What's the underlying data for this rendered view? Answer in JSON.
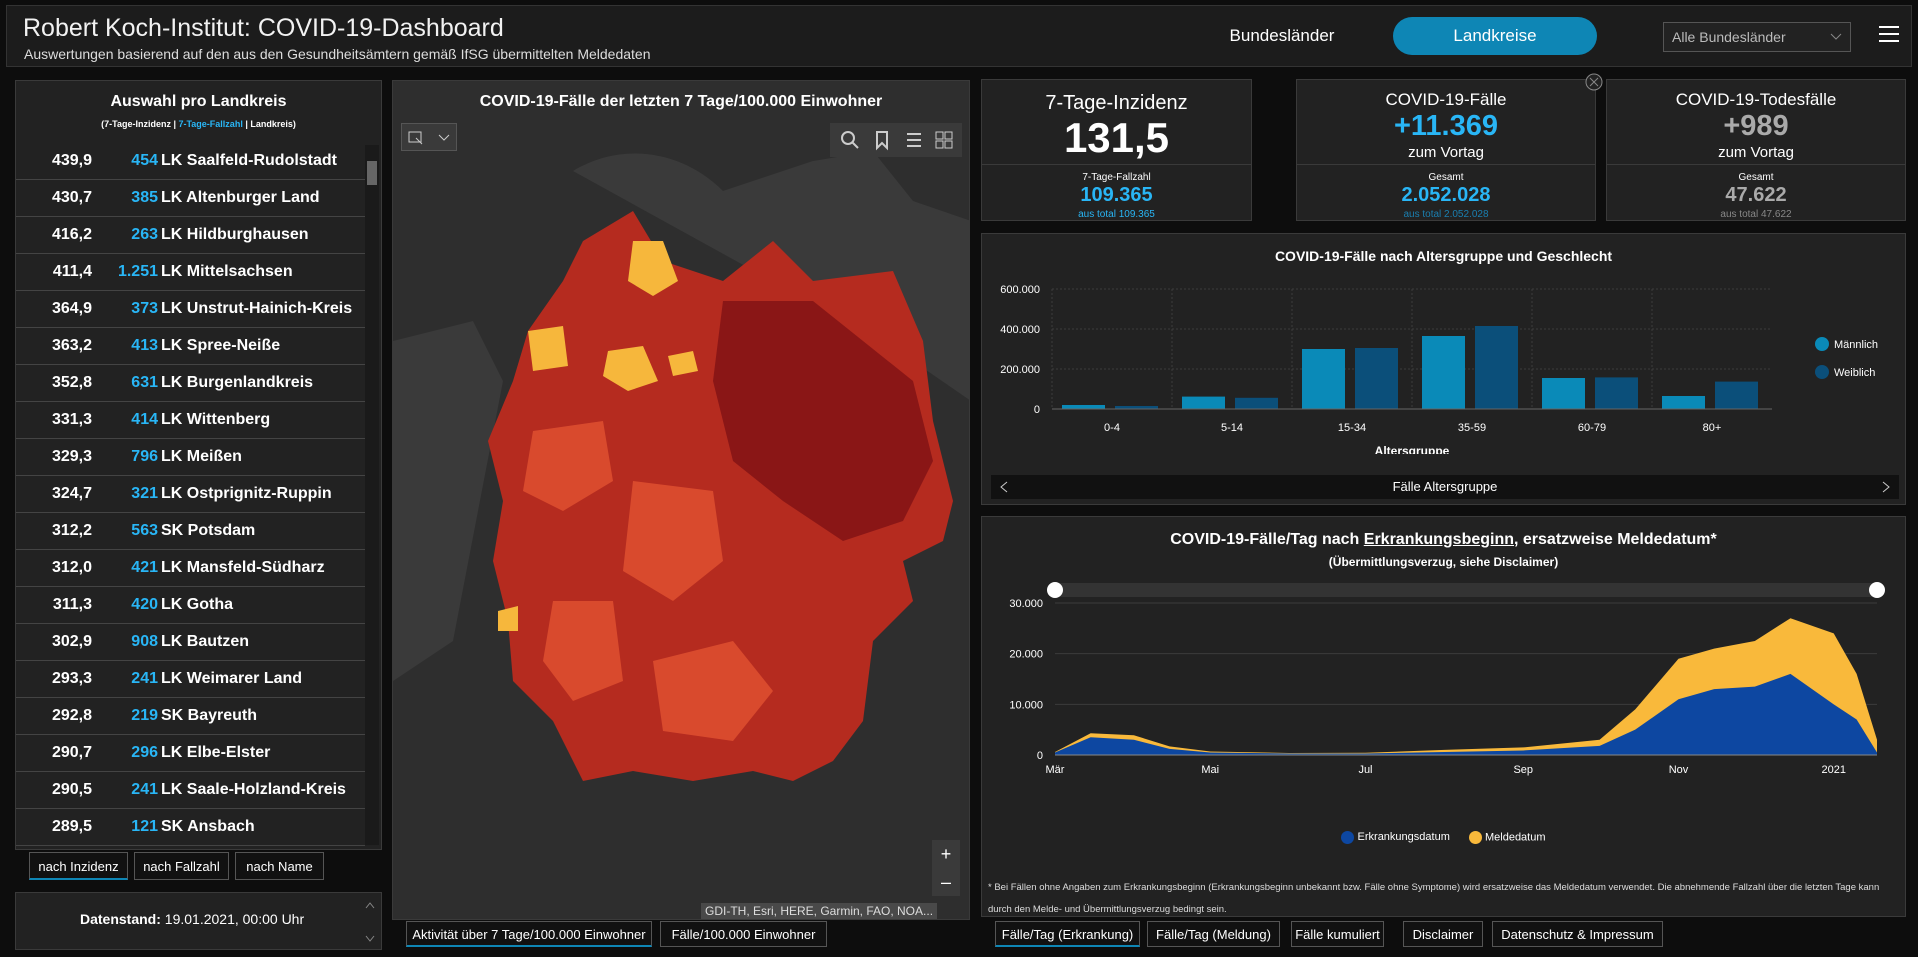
{
  "header": {
    "title": "Robert Koch-Institut: COVID-19-Dashboard",
    "subtitle": "Auswertungen basierend auf den aus den Gesundheitsämtern gemäß IfSG übermittelten Meldedaten",
    "tab_states": "Bundesländer",
    "tab_districts": "Landkreise",
    "state_select": "Alle Bundesländer"
  },
  "district_list": {
    "title": "Auswahl pro Landkreis",
    "legend_a": "(7-Tage-Inzidenz | ",
    "legend_b": "7-Tage-Fallzahl",
    "legend_c": " | Landkreis)",
    "rows": [
      {
        "incidence": "439,9",
        "cases": "454",
        "name": "LK Saalfeld-Rudolstadt"
      },
      {
        "incidence": "430,7",
        "cases": "385",
        "name": "LK Altenburger Land"
      },
      {
        "incidence": "416,2",
        "cases": "263",
        "name": "LK Hildburghausen"
      },
      {
        "incidence": "411,4",
        "cases": "1.251",
        "name": "LK Mittelsachsen"
      },
      {
        "incidence": "364,9",
        "cases": "373",
        "name": "LK Unstrut-Hainich-Kreis"
      },
      {
        "incidence": "363,2",
        "cases": "413",
        "name": "LK Spree-Neiße"
      },
      {
        "incidence": "352,8",
        "cases": "631",
        "name": "LK Burgenlandkreis"
      },
      {
        "incidence": "331,3",
        "cases": "414",
        "name": "LK Wittenberg"
      },
      {
        "incidence": "329,3",
        "cases": "796",
        "name": "LK Meißen"
      },
      {
        "incidence": "324,7",
        "cases": "321",
        "name": "LK Ostprignitz-Ruppin"
      },
      {
        "incidence": "312,2",
        "cases": "563",
        "name": "SK Potsdam"
      },
      {
        "incidence": "312,0",
        "cases": "421",
        "name": "LK Mansfeld-Südharz"
      },
      {
        "incidence": "311,3",
        "cases": "420",
        "name": "LK Gotha"
      },
      {
        "incidence": "302,9",
        "cases": "908",
        "name": "LK Bautzen"
      },
      {
        "incidence": "293,3",
        "cases": "241",
        "name": "LK Weimarer Land"
      },
      {
        "incidence": "292,8",
        "cases": "219",
        "name": "SK Bayreuth"
      },
      {
        "incidence": "290,7",
        "cases": "296",
        "name": "LK Elbe-Elster"
      },
      {
        "incidence": "290,5",
        "cases": "241",
        "name": "LK Saale-Holzland-Kreis"
      },
      {
        "incidence": "289,5",
        "cases": "121",
        "name": "SK Ansbach"
      }
    ],
    "sort_incidence": "nach Inzidenz",
    "sort_cases": "nach Fallzahl",
    "sort_name": "nach Name"
  },
  "status": {
    "label": "Datenstand:",
    "value": "19.01.2021, 00:00 Uhr"
  },
  "map": {
    "title": "COVID-19-Fälle der letzten 7 Tage/100.000 Einwohner",
    "attribution": "GDI-TH, Esri, HERE, Garmin, FAO, NOA...",
    "tab_activity": "Aktivität über 7 Tage/100.000 Einwohner",
    "tab_cases": "Fälle/100.000 Einwohner",
    "zoom_in": "+",
    "zoom_out": "–"
  },
  "kpi": {
    "incidence": {
      "title": "7-Tage-Inzidenz",
      "value": "131,5",
      "sub_label": "7-Tage-Fallzahl",
      "sub_value": "109.365",
      "foot": "aus total 109.365"
    },
    "cases": {
      "title": "COVID-19-Fälle",
      "value": "+11.369",
      "unit": "zum Vortag",
      "sub_label": "Gesamt",
      "sub_value": "2.052.028",
      "foot": "aus total 2.052.028"
    },
    "deaths": {
      "title": "COVID-19-Todesfälle",
      "value": "+989",
      "unit": "zum Vortag",
      "sub_label": "Gesamt",
      "sub_value": "47.622",
      "foot": "aus total 47.622"
    }
  },
  "age_chart": {
    "title": "COVID-19-Fälle nach Altersgruppe und Geschlecht",
    "nav_label": "Fälle Altersgruppe",
    "y_ticks": [
      "600.000",
      "400.000",
      "200.000",
      "0"
    ]
  },
  "daily_chart": {
    "title_a": "COVID-19-Fälle/Tag nach ",
    "title_b": "Erkrankungsbeginn",
    "title_c": ", ersatzweise Meldedatum*",
    "subtitle": "(Übermittlungsverzug, siehe Disclaimer)",
    "y_ticks": [
      "30.000",
      "20.000",
      "10.000",
      "0"
    ],
    "x_ticks": [
      "Mär",
      "Mai",
      "Jul",
      "Sep",
      "Nov",
      "2021"
    ],
    "legend_onset": "Erkrankungsdatum",
    "legend_report": "Meldedatum",
    "footnote": "* Bei Fällen ohne Angaben zum Erkrankungsbeginn (Erkrankungsbeginn unbekannt bzw. Fälle ohne Symptome) wird ersatzweise das Meldedatum verwendet. Die abnehmende Fallzahl über die letzten Tage kann durch den Melde- und Übermittlungsverzug bedingt sein."
  },
  "bottom_tabs": [
    "Fälle/Tag (Erkrankung)",
    "Fälle/Tag (Meldung)",
    "Fälle kumuliert",
    "Disclaimer",
    "Datenschutz & Impressum"
  ],
  "colors": {
    "accent": "#0e86b5",
    "blue": "#29b6f6",
    "male": "#0a8ab8",
    "female": "#0b4f7a",
    "onset": "#0d47a1",
    "report": "#f9b93b"
  },
  "chart_data": [
    {
      "type": "bar",
      "title": "COVID-19-Fälle nach Altersgruppe und Geschlecht",
      "xlabel": "Altersgruppe",
      "ylabel": "",
      "ylim": [
        0,
        600000
      ],
      "categories": [
        "0-4",
        "5-14",
        "15-34",
        "35-59",
        "60-79",
        "80+"
      ],
      "series": [
        {
          "name": "Männlich",
          "values": [
            20000,
            62000,
            300000,
            365000,
            155000,
            65000
          ]
        },
        {
          "name": "Weiblich",
          "values": [
            15000,
            56000,
            305000,
            415000,
            158000,
            137000
          ]
        }
      ],
      "legend": "right"
    },
    {
      "type": "area",
      "title": "COVID-19-Fälle/Tag nach Erkrankungsbeginn, ersatzweise Meldedatum*",
      "ylim": [
        0,
        30000
      ],
      "x": [
        "2020-03-01",
        "2020-03-15",
        "2020-04-01",
        "2020-04-15",
        "2020-05-01",
        "2020-06-01",
        "2020-07-01",
        "2020-08-01",
        "2020-09-01",
        "2020-10-01",
        "2020-10-15",
        "2020-11-01",
        "2020-11-15",
        "2020-12-01",
        "2020-12-15",
        "2021-01-01",
        "2021-01-10",
        "2021-01-18"
      ],
      "series": [
        {
          "name": "Erkrankungsdatum",
          "values": [
            500,
            3500,
            3000,
            1200,
            500,
            300,
            300,
            600,
            900,
            1800,
            5000,
            11000,
            13000,
            13500,
            16000,
            10000,
            7000,
            500
          ]
        },
        {
          "name": "Meldedatum",
          "values": [
            100,
            800,
            900,
            500,
            200,
            100,
            150,
            400,
            600,
            1200,
            4000,
            8000,
            8000,
            9000,
            11000,
            14000,
            9000,
            2500
          ]
        }
      ],
      "legend": "bottom"
    }
  ]
}
